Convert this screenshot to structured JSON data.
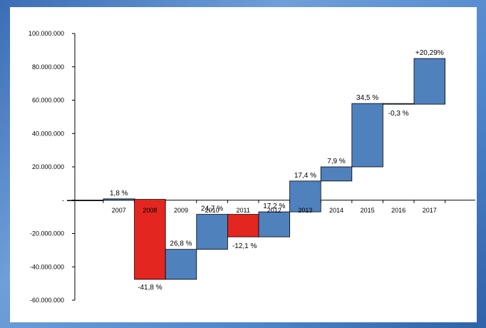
{
  "chart_data": {
    "type": "waterfall",
    "title": "",
    "xlabel": "",
    "ylabel": "",
    "ylim": [
      -60000000,
      100000000
    ],
    "y_ticks": [
      {
        "value": 100000000,
        "label": "100.000.000"
      },
      {
        "value": 80000000,
        "label": "80.000.000"
      },
      {
        "value": 60000000,
        "label": "60.000.000"
      },
      {
        "value": 40000000,
        "label": "40.000.000"
      },
      {
        "value": 20000000,
        "label": "20.000.000"
      },
      {
        "value": 0,
        "label": "-"
      },
      {
        "value": -20000000,
        "label": "-20.000.000"
      },
      {
        "value": -40000000,
        "label": "-40.000.000"
      },
      {
        "value": -60000000,
        "label": "-60.000.000"
      }
    ],
    "categories": [
      "2007",
      "2008",
      "2009",
      "2010",
      "2011",
      "2012",
      "2013",
      "2014",
      "2015",
      "2016",
      "2017"
    ],
    "bars": [
      {
        "category": "2007",
        "start": 0,
        "end": 800000,
        "label": "1,8 %",
        "color": "#4f81bd"
      },
      {
        "category": "2008",
        "start": 500000,
        "end": -47500000,
        "label": "-41,8 %",
        "color": "#e3261f"
      },
      {
        "category": "2009",
        "start": -47500000,
        "end": -29500000,
        "label": "26,8 %",
        "color": "#4f81bd"
      },
      {
        "category": "2010",
        "start": -29500000,
        "end": -8500000,
        "label": "24,7 %",
        "color": "#4f81bd"
      },
      {
        "category": "2011",
        "start": -8500000,
        "end": -22000000,
        "label": "-12,1 %",
        "color": "#e3261f"
      },
      {
        "category": "2012",
        "start": -22000000,
        "end": -7000000,
        "label": "17,2 %",
        "color": "#4f81bd"
      },
      {
        "category": "2013",
        "start": -7000000,
        "end": 11500000,
        "label": "17,4 %",
        "color": "#4f81bd"
      },
      {
        "category": "2014",
        "start": 11500000,
        "end": 20000000,
        "label": "7,9 %",
        "color": "#4f81bd"
      },
      {
        "category": "2015",
        "start": 20000000,
        "end": 58000000,
        "label": "34,5 %",
        "color": "#4f81bd"
      },
      {
        "category": "2016",
        "start": 58000000,
        "end": 57600000,
        "label": "-0,3 %",
        "color": "#4f81bd"
      },
      {
        "category": "2017",
        "start": 57600000,
        "end": 85000000,
        "label": "+20,29%",
        "color": "#4f81bd"
      }
    ]
  }
}
